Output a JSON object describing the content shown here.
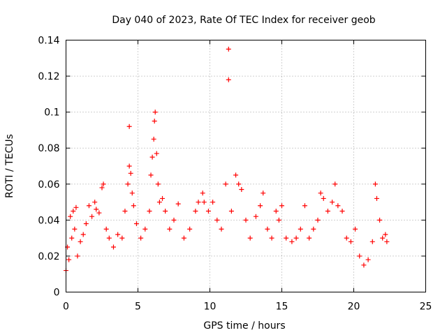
{
  "chart_data": {
    "type": "scatter",
    "title": "Day 040 of 2023, Rate Of TEC Index for receiver geob",
    "xlabel": "GPS time / hours",
    "ylabel": "ROTI / TECUs",
    "xlim": [
      0,
      25
    ],
    "ylim": [
      0,
      0.14
    ],
    "xticks": [
      0,
      5,
      10,
      15,
      20,
      25
    ],
    "xtick_labels": [
      "0",
      "5",
      "10",
      "15",
      "20",
      "25"
    ],
    "yticks": [
      0,
      0.02,
      0.04,
      0.06,
      0.08,
      0.1,
      0.12,
      0.14
    ],
    "ytick_labels": [
      "0",
      "0.02",
      "0.04",
      "0.06",
      "0.08",
      "0.1",
      "0.12",
      "0.14"
    ],
    "grid": true,
    "marker": "plus",
    "series": [
      {
        "color": "#ff0000",
        "points": [
          [
            0.0,
            0.012
          ],
          [
            0.1,
            0.025
          ],
          [
            0.2,
            0.018
          ],
          [
            0.3,
            0.042
          ],
          [
            0.4,
            0.03
          ],
          [
            0.5,
            0.045
          ],
          [
            0.6,
            0.035
          ],
          [
            0.7,
            0.047
          ],
          [
            0.8,
            0.02
          ],
          [
            1.0,
            0.028
          ],
          [
            1.2,
            0.032
          ],
          [
            1.4,
            0.038
          ],
          [
            1.6,
            0.048
          ],
          [
            1.8,
            0.042
          ],
          [
            2.0,
            0.05
          ],
          [
            2.1,
            0.046
          ],
          [
            2.3,
            0.044
          ],
          [
            2.5,
            0.058
          ],
          [
            2.6,
            0.06
          ],
          [
            2.8,
            0.035
          ],
          [
            3.0,
            0.03
          ],
          [
            3.3,
            0.025
          ],
          [
            3.6,
            0.032
          ],
          [
            3.9,
            0.03
          ],
          [
            4.1,
            0.045
          ],
          [
            4.3,
            0.06
          ],
          [
            4.4,
            0.07
          ],
          [
            4.4,
            0.092
          ],
          [
            4.5,
            0.066
          ],
          [
            4.6,
            0.055
          ],
          [
            4.7,
            0.048
          ],
          [
            4.9,
            0.038
          ],
          [
            5.2,
            0.03
          ],
          [
            5.5,
            0.035
          ],
          [
            5.8,
            0.045
          ],
          [
            5.9,
            0.065
          ],
          [
            6.0,
            0.075
          ],
          [
            6.1,
            0.085
          ],
          [
            6.15,
            0.095
          ],
          [
            6.2,
            0.1
          ],
          [
            6.3,
            0.077
          ],
          [
            6.4,
            0.06
          ],
          [
            6.5,
            0.05
          ],
          [
            6.7,
            0.052
          ],
          [
            6.9,
            0.045
          ],
          [
            7.2,
            0.035
          ],
          [
            7.5,
            0.04
          ],
          [
            7.8,
            0.049
          ],
          [
            8.2,
            0.03
          ],
          [
            8.6,
            0.035
          ],
          [
            9.0,
            0.045
          ],
          [
            9.2,
            0.05
          ],
          [
            9.5,
            0.055
          ],
          [
            9.6,
            0.05
          ],
          [
            9.9,
            0.045
          ],
          [
            10.2,
            0.05
          ],
          [
            10.5,
            0.04
          ],
          [
            10.8,
            0.035
          ],
          [
            11.1,
            0.06
          ],
          [
            11.3,
            0.118
          ],
          [
            11.3,
            0.135
          ],
          [
            11.5,
            0.045
          ],
          [
            11.8,
            0.065
          ],
          [
            12.0,
            0.06
          ],
          [
            12.2,
            0.057
          ],
          [
            12.5,
            0.04
          ],
          [
            12.8,
            0.03
          ],
          [
            13.2,
            0.042
          ],
          [
            13.5,
            0.048
          ],
          [
            13.7,
            0.055
          ],
          [
            14.0,
            0.035
          ],
          [
            14.3,
            0.03
          ],
          [
            14.6,
            0.045
          ],
          [
            14.8,
            0.04
          ],
          [
            15.0,
            0.048
          ],
          [
            15.3,
            0.03
          ],
          [
            15.7,
            0.028
          ],
          [
            16.0,
            0.03
          ],
          [
            16.3,
            0.035
          ],
          [
            16.6,
            0.048
          ],
          [
            16.9,
            0.03
          ],
          [
            17.2,
            0.035
          ],
          [
            17.5,
            0.04
          ],
          [
            17.7,
            0.055
          ],
          [
            17.9,
            0.052
          ],
          [
            18.2,
            0.045
          ],
          [
            18.5,
            0.05
          ],
          [
            18.7,
            0.06
          ],
          [
            18.9,
            0.048
          ],
          [
            19.2,
            0.045
          ],
          [
            19.5,
            0.03
          ],
          [
            19.8,
            0.028
          ],
          [
            20.1,
            0.035
          ],
          [
            20.4,
            0.02
          ],
          [
            20.7,
            0.015
          ],
          [
            21.0,
            0.018
          ],
          [
            21.3,
            0.028
          ],
          [
            21.5,
            0.06
          ],
          [
            21.6,
            0.052
          ],
          [
            21.8,
            0.04
          ],
          [
            22.0,
            0.03
          ],
          [
            22.2,
            0.032
          ],
          [
            22.3,
            0.028
          ]
        ]
      }
    ]
  }
}
